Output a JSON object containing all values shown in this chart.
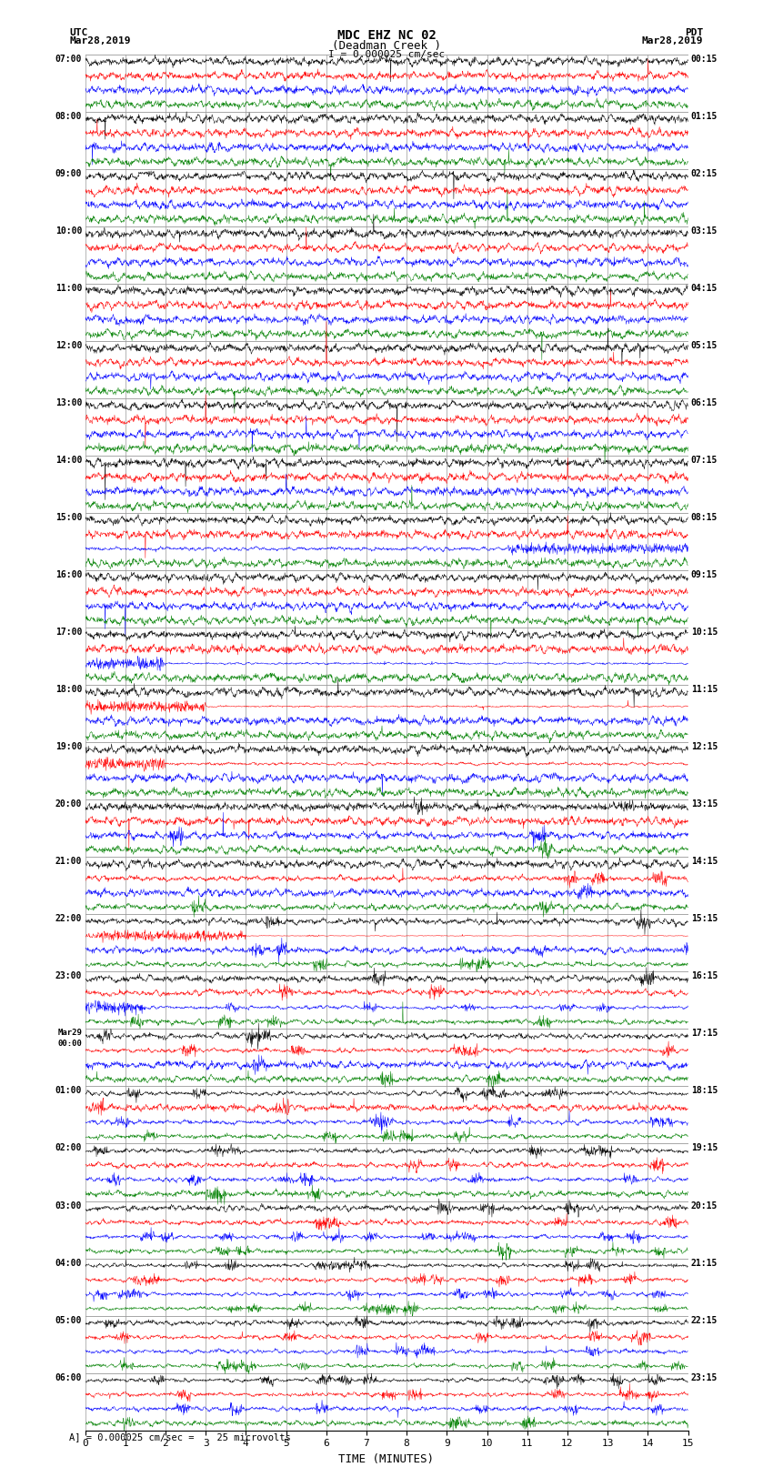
{
  "title_line1": "MDC EHZ NC 02",
  "title_line2": "(Deadman Creek )",
  "title_line3": "I = 0.000025 cm/sec",
  "left_label_line1": "UTC",
  "left_label_line2": "Mar28,2019",
  "right_label_line1": "PDT",
  "right_label_line2": "Mar28,2019",
  "footer": "= 0.000025 cm/sec =    25 microvolts",
  "xlabel": "TIME (MINUTES)",
  "bg_color": "#ffffff",
  "trace_colors": [
    "black",
    "red",
    "blue",
    "green"
  ],
  "grid_color": "#999999",
  "n_groups": 24,
  "xlim": [
    0,
    15
  ],
  "xticks": [
    0,
    1,
    2,
    3,
    4,
    5,
    6,
    7,
    8,
    9,
    10,
    11,
    12,
    13,
    14,
    15
  ],
  "left_times_utc": [
    "07:00",
    "08:00",
    "09:00",
    "10:00",
    "11:00",
    "12:00",
    "13:00",
    "14:00",
    "15:00",
    "16:00",
    "17:00",
    "18:00",
    "19:00",
    "20:00",
    "21:00",
    "22:00",
    "23:00",
    "Mar29\n00:00",
    "01:00",
    "02:00",
    "03:00",
    "04:00",
    "05:00",
    "06:00"
  ],
  "right_times_pdt": [
    "00:15",
    "01:15",
    "02:15",
    "03:15",
    "04:15",
    "05:15",
    "06:15",
    "07:15",
    "08:15",
    "09:15",
    "10:15",
    "11:15",
    "12:15",
    "13:15",
    "14:15",
    "15:15",
    "16:15",
    "17:15",
    "18:15",
    "19:15",
    "20:15",
    "21:15",
    "22:15",
    "23:15"
  ]
}
